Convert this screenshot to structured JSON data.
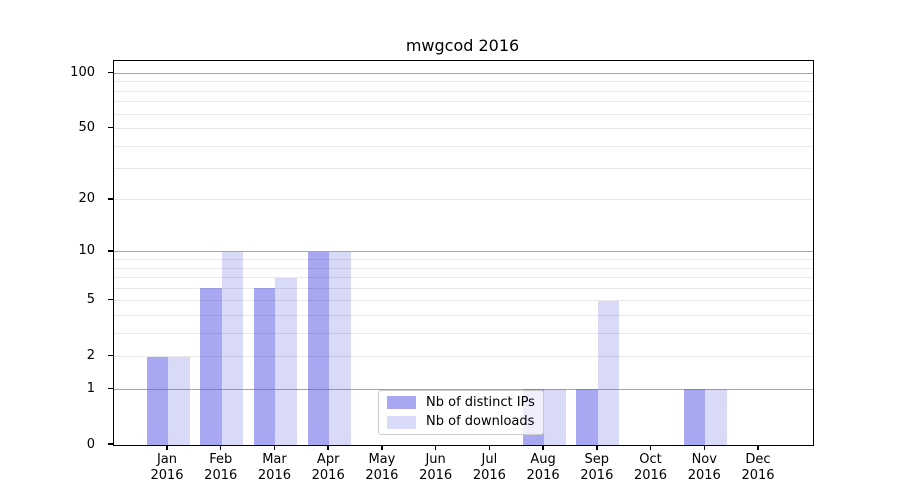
{
  "chart_data": {
    "type": "bar",
    "title": "mwgcod 2016",
    "categories": [
      {
        "month": "Jan",
        "year": "2016"
      },
      {
        "month": "Feb",
        "year": "2016"
      },
      {
        "month": "Mar",
        "year": "2016"
      },
      {
        "month": "Apr",
        "year": "2016"
      },
      {
        "month": "May",
        "year": "2016"
      },
      {
        "month": "Jun",
        "year": "2016"
      },
      {
        "month": "Jul",
        "year": "2016"
      },
      {
        "month": "Aug",
        "year": "2016"
      },
      {
        "month": "Sep",
        "year": "2016"
      },
      {
        "month": "Oct",
        "year": "2016"
      },
      {
        "month": "Nov",
        "year": "2016"
      },
      {
        "month": "Dec",
        "year": "2016"
      }
    ],
    "series": [
      {
        "name": "Nb of distinct IPs",
        "color": "#a8a8f2",
        "values": [
          2,
          6,
          6,
          10,
          0,
          0,
          0,
          1,
          1,
          0,
          1,
          0
        ]
      },
      {
        "name": "Nb of downloads",
        "color": "#d9d9f8",
        "values": [
          2,
          10,
          7,
          10,
          0,
          0,
          0,
          1,
          5,
          0,
          1,
          0
        ]
      }
    ],
    "y_scale": "log10(1+v)",
    "ylim": [
      0,
      117
    ],
    "y_ticks": [
      0,
      1,
      2,
      5,
      10,
      20,
      50,
      100
    ],
    "y_major_gridlines": [
      1,
      10,
      100
    ],
    "y_minor_gridlines": [
      2,
      3,
      4,
      5,
      6,
      7,
      8,
      9,
      20,
      30,
      40,
      50,
      60,
      70,
      80,
      90
    ],
    "grid": true,
    "legend_position": "lower center"
  },
  "legend": {
    "items": [
      {
        "label": "Nb of distinct IPs"
      },
      {
        "label": "Nb of downloads"
      }
    ]
  },
  "colors": {
    "frame": "#000000",
    "major_grid": "#b0b0b0",
    "minor_grid": "#ebebeb",
    "legend_border": "#cbcbcb"
  }
}
